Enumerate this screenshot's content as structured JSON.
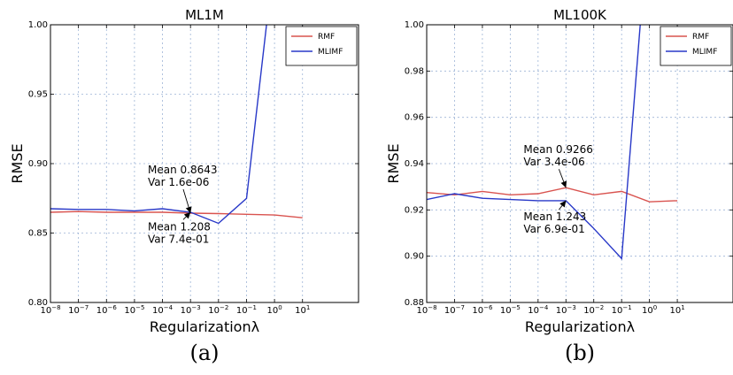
{
  "chart_data": [
    {
      "type": "line",
      "title": "ML1M",
      "xlabel": "Regularizationλ",
      "ylabel": "RMSE",
      "caption": "(a)",
      "xscale": "log",
      "xlim": [
        1e-08,
        1000
      ],
      "ylim": [
        0.8,
        1.0
      ],
      "grid": true,
      "legend": "top-right",
      "xticks": [
        {
          "exp": -8,
          "base": "10",
          "sup": "−8"
        },
        {
          "exp": -7,
          "base": "10",
          "sup": "−7"
        },
        {
          "exp": -6,
          "base": "10",
          "sup": "−6"
        },
        {
          "exp": -5,
          "base": "10",
          "sup": "−5"
        },
        {
          "exp": -4,
          "base": "10",
          "sup": "−4"
        },
        {
          "exp": -3,
          "base": "10",
          "sup": "−3"
        },
        {
          "exp": -2,
          "base": "10",
          "sup": "−2"
        },
        {
          "exp": -1,
          "base": "10",
          "sup": "−1"
        },
        {
          "exp": 0,
          "base": "10",
          "sup": "0"
        },
        {
          "exp": 1,
          "base": "10",
          "sup": "1"
        }
      ],
      "yticks": [
        {
          "value": 0.8,
          "label": "0.80"
        },
        {
          "value": 0.85,
          "label": "0.85"
        },
        {
          "value": 0.9,
          "label": "0.90"
        },
        {
          "value": 0.95,
          "label": "0.95"
        },
        {
          "value": 1.0,
          "label": "1.00"
        }
      ],
      "x": [
        1e-08,
        1e-07,
        1e-06,
        1e-05,
        0.0001,
        0.001,
        0.01,
        0.1,
        1,
        10
      ],
      "series": [
        {
          "name": "RMF",
          "color": "#d9534f",
          "values": [
            0.865,
            0.8655,
            0.865,
            0.865,
            0.865,
            0.8643,
            0.864,
            0.8635,
            0.863,
            0.861
          ]
        },
        {
          "name": "MLIMF",
          "color": "#2838c8",
          "values": [
            0.8675,
            0.867,
            0.867,
            0.866,
            0.8675,
            0.865,
            0.857,
            0.875,
            1.05,
            null
          ]
        }
      ],
      "annotations": [
        {
          "lines": [
            "Mean 0.8643",
            "Var 1.6e-06"
          ],
          "x": 0.001,
          "y": 0.8643,
          "text_x": 3e-05,
          "text_y": 0.893
        },
        {
          "lines": [
            "Mean 1.208",
            "Var 7.4e-01"
          ],
          "x": 0.001,
          "y": 0.865,
          "text_x": 3e-05,
          "text_y": 0.852
        }
      ]
    },
    {
      "type": "line",
      "title": "ML100K",
      "xlabel": "Regularizationλ",
      "ylabel": "RMSE",
      "caption": "(b)",
      "xscale": "log",
      "xlim": [
        1e-08,
        1000
      ],
      "ylim": [
        0.88,
        1.0
      ],
      "grid": true,
      "legend": "top-right",
      "xticks": [
        {
          "exp": -8,
          "base": "10",
          "sup": "−8"
        },
        {
          "exp": -7,
          "base": "10",
          "sup": "−7"
        },
        {
          "exp": -6,
          "base": "10",
          "sup": "−6"
        },
        {
          "exp": -5,
          "base": "10",
          "sup": "−5"
        },
        {
          "exp": -4,
          "base": "10",
          "sup": "−4"
        },
        {
          "exp": -3,
          "base": "10",
          "sup": "−3"
        },
        {
          "exp": -2,
          "base": "10",
          "sup": "−2"
        },
        {
          "exp": -1,
          "base": "10",
          "sup": "−1"
        },
        {
          "exp": 0,
          "base": "10",
          "sup": "0"
        },
        {
          "exp": 1,
          "base": "10",
          "sup": "1"
        }
      ],
      "yticks": [
        {
          "value": 0.88,
          "label": "0.88"
        },
        {
          "value": 0.9,
          "label": "0.90"
        },
        {
          "value": 0.92,
          "label": "0.92"
        },
        {
          "value": 0.94,
          "label": "0.94"
        },
        {
          "value": 0.96,
          "label": "0.96"
        },
        {
          "value": 0.98,
          "label": "0.98"
        },
        {
          "value": 1.0,
          "label": "1.00"
        }
      ],
      "x": [
        1e-08,
        1e-07,
        1e-06,
        1e-05,
        0.0001,
        0.001,
        0.01,
        0.1,
        1,
        10
      ],
      "series": [
        {
          "name": "RMF",
          "color": "#d9534f",
          "values": [
            0.9275,
            0.9265,
            0.928,
            0.9265,
            0.927,
            0.9296,
            0.9265,
            0.928,
            0.9235,
            0.924
          ]
        },
        {
          "name": "MLIMF",
          "color": "#2838c8",
          "values": [
            0.9245,
            0.927,
            0.925,
            0.9245,
            0.924,
            0.924,
            0.912,
            0.899,
            1.05,
            null
          ]
        }
      ],
      "annotations": [
        {
          "lines": [
            "Mean 0.9266",
            "Var 3.4e-06"
          ],
          "x": 0.001,
          "y": 0.9296,
          "text_x": 3e-05,
          "text_y": 0.9445
        },
        {
          "lines": [
            "Mean 1.243",
            "Var 6.9e-01"
          ],
          "x": 0.001,
          "y": 0.924,
          "text_x": 3e-05,
          "text_y": 0.9155
        }
      ]
    }
  ]
}
